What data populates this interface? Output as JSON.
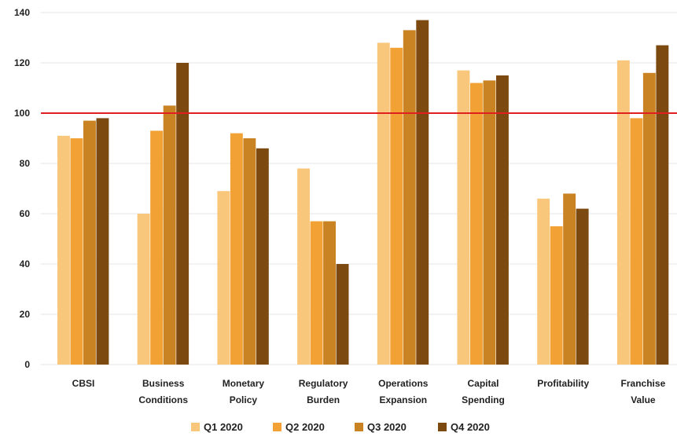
{
  "chart_data": {
    "type": "bar",
    "title": "",
    "xlabel": "",
    "ylabel": "",
    "ylim": [
      0,
      140
    ],
    "yticks": [
      0,
      20,
      40,
      60,
      80,
      100,
      120,
      140
    ],
    "grid": true,
    "legend_position": "bottom",
    "categories": [
      [
        "CBSI"
      ],
      [
        "Business",
        "Conditions"
      ],
      [
        "Monetary",
        "Policy"
      ],
      [
        "Regulatory",
        "Burden"
      ],
      [
        "Operations",
        "Expansion"
      ],
      [
        "Capital",
        "Spending"
      ],
      [
        "Profitability"
      ],
      [
        "Franchise",
        "Value"
      ]
    ],
    "series": [
      {
        "name": "Q1 2020",
        "color": "#F9C77C",
        "values": [
          91,
          60,
          69,
          78,
          128,
          117,
          66,
          121
        ]
      },
      {
        "name": "Q2 2020",
        "color": "#F2A234",
        "values": [
          90,
          93,
          92,
          57,
          126,
          112,
          55,
          98
        ]
      },
      {
        "name": "Q3 2020",
        "color": "#C98322",
        "values": [
          97,
          103,
          90,
          57,
          133,
          113,
          68,
          116
        ]
      },
      {
        "name": "Q4 2020",
        "color": "#7C4A10",
        "values": [
          98,
          120,
          86,
          40,
          137,
          115,
          62,
          127
        ]
      }
    ],
    "reference_line": {
      "value": 100,
      "color": "#E02020"
    }
  }
}
